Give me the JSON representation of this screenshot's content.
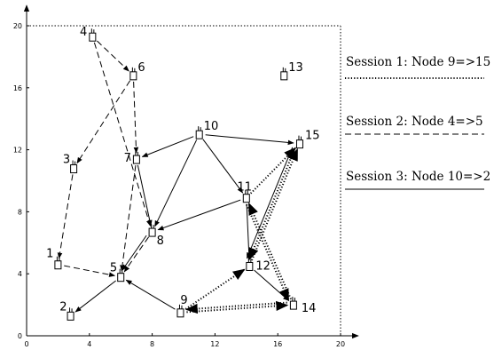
{
  "axes": {
    "xlim": [
      0,
      20
    ],
    "ylim": [
      0,
      20
    ],
    "x_ticks": [
      "0",
      "4",
      "8",
      "12",
      "16",
      "20"
    ],
    "y_ticks": [
      "0",
      "4",
      "8",
      "12",
      "16",
      "20"
    ],
    "x_tick_values": [
      0,
      4,
      8,
      12,
      16,
      20
    ],
    "y_tick_values": [
      0,
      4,
      8,
      12,
      16,
      20
    ]
  },
  "nodes": [
    {
      "id": "1",
      "x": 2.0,
      "y": 4.6
    },
    {
      "id": "2",
      "x": 2.8,
      "y": 1.3
    },
    {
      "id": "3",
      "x": 3.0,
      "y": 10.8
    },
    {
      "id": "4",
      "x": 4.2,
      "y": 19.3
    },
    {
      "id": "5",
      "x": 6.0,
      "y": 3.8
    },
    {
      "id": "6",
      "x": 6.8,
      "y": 16.8
    },
    {
      "id": "7",
      "x": 7.0,
      "y": 11.4
    },
    {
      "id": "8",
      "x": 8.0,
      "y": 6.7
    },
    {
      "id": "9",
      "x": 9.8,
      "y": 1.5
    },
    {
      "id": "10",
      "x": 11.0,
      "y": 13.0
    },
    {
      "id": "11",
      "x": 14.0,
      "y": 8.9
    },
    {
      "id": "12",
      "x": 14.2,
      "y": 4.5
    },
    {
      "id": "13",
      "x": 16.4,
      "y": 16.8
    },
    {
      "id": "14",
      "x": 17.0,
      "y": 2.0
    },
    {
      "id": "15",
      "x": 17.4,
      "y": 12.4
    }
  ],
  "sessions": [
    {
      "label": "Session 1: Node 9=>15",
      "style": "dotted",
      "links": [
        [
          "9",
          "14"
        ],
        [
          "14",
          "9"
        ],
        [
          "9",
          "12"
        ],
        [
          "12",
          "15"
        ],
        [
          "15",
          "12"
        ],
        [
          "11",
          "15"
        ],
        [
          "14",
          "11"
        ],
        [
          "11",
          "14"
        ]
      ]
    },
    {
      "label": "Session 2: Node 4=>5",
      "style": "dashed",
      "links": [
        [
          "4",
          "6"
        ],
        [
          "6",
          "3"
        ],
        [
          "3",
          "1"
        ],
        [
          "1",
          "5"
        ],
        [
          "6",
          "7"
        ],
        [
          "4",
          "8"
        ],
        [
          "7",
          "5"
        ],
        [
          "8",
          "5"
        ]
      ]
    },
    {
      "label": "Session 3: Node 10=>2",
      "style": "solid",
      "links": [
        [
          "10",
          "7"
        ],
        [
          "10",
          "15"
        ],
        [
          "10",
          "11"
        ],
        [
          "10",
          "8"
        ],
        [
          "7",
          "8"
        ],
        [
          "11",
          "8"
        ],
        [
          "8",
          "5"
        ],
        [
          "5",
          "2"
        ],
        [
          "9",
          "5"
        ],
        [
          "11",
          "12"
        ],
        [
          "12",
          "14"
        ],
        [
          "15",
          "12"
        ]
      ]
    }
  ]
}
